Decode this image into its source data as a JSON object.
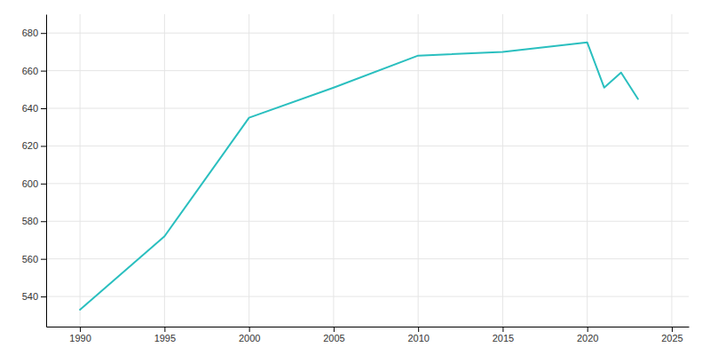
{
  "chart_data": {
    "type": "line",
    "x": [
      1990,
      1995,
      2000,
      2005,
      2010,
      2015,
      2020,
      2021,
      2022,
      2023
    ],
    "values": [
      533,
      572,
      635,
      651,
      668,
      670,
      675,
      651,
      659,
      645
    ],
    "color": "#2abfbf",
    "xlim": [
      1988,
      2026
    ],
    "ylim": [
      524,
      690
    ],
    "xticks": [
      1990,
      1995,
      2000,
      2005,
      2010,
      2015,
      2020,
      2025
    ],
    "yticks": [
      540,
      560,
      580,
      600,
      620,
      640,
      660,
      680
    ],
    "grid": true
  }
}
